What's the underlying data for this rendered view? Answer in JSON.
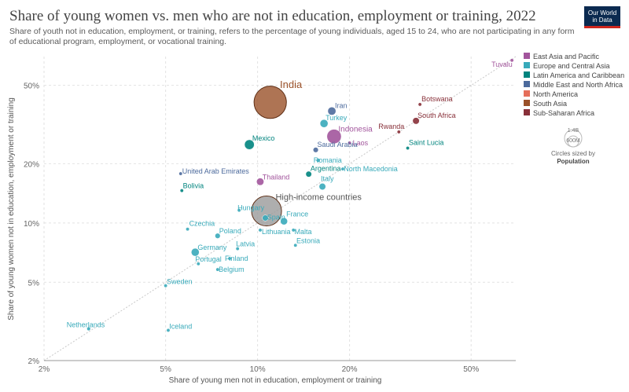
{
  "header": {
    "title": "Share of young women vs. men who are not in education, employment or training, 2022",
    "subtitle": "Share of youth not in education, employment, or training, refers to the percentage of young individuals, aged 15 to 24, who are not participating in any form of educational program, employment, or vocational training.",
    "logo_line1": "Our World",
    "logo_line2": "in Data"
  },
  "colors": {
    "East Asia and Pacific": "#a2559c",
    "Europe and Central Asia": "#38aaba",
    "Latin America and Caribbean": "#00847e",
    "Middle East and North Africa": "#4c6a9c",
    "North America": "#e56e5a",
    "South Asia": "#9a5129",
    "Sub-Saharan Africa": "#883039",
    "High-income countries": "#9a9a9a"
  },
  "size_legend": {
    "large": "1.4B",
    "small": "600M",
    "caption1": "Circles sized by",
    "caption2": "Population"
  },
  "chart_data": {
    "type": "scatter",
    "title": "Share of young women vs. men who are not in education, employment or training, 2022",
    "xlabel": "Share of young men not in education, employment or training",
    "ylabel": "Share of young women not in education, employment or training",
    "x_scale": "log",
    "y_scale": "log",
    "xlim": [
      2,
      70
    ],
    "ylim": [
      2,
      70
    ],
    "x_ticks": [
      "2%",
      "5%",
      "10%",
      "20%",
      "50%"
    ],
    "y_ticks": [
      "2%",
      "5%",
      "10%",
      "20%",
      "50%"
    ],
    "x_tick_values": [
      2,
      5,
      10,
      20,
      50
    ],
    "y_tick_values": [
      2,
      5,
      10,
      20,
      50
    ],
    "reference_line": "y = x",
    "legend": [
      "East Asia and Pacific",
      "Europe and Central Asia",
      "Latin America and Caribbean",
      "Middle East and North Africa",
      "North America",
      "South Asia",
      "Sub-Saharan Africa"
    ],
    "legend_position": "top-right",
    "points": [
      {
        "label": "Tuvalu",
        "x": 68,
        "y": 67,
        "region": "East Asia and Pacific",
        "pop": 0
      },
      {
        "label": "India",
        "x": 11,
        "y": 41,
        "region": "South Asia",
        "pop": 1400
      },
      {
        "label": "Botswana",
        "x": 34,
        "y": 40,
        "region": "Sub-Saharan Africa",
        "pop": 2
      },
      {
        "label": "Iran",
        "x": 17.5,
        "y": 37,
        "region": "Middle East and North Africa",
        "pop": 88
      },
      {
        "label": "South Africa",
        "x": 33,
        "y": 33,
        "region": "Sub-Saharan Africa",
        "pop": 60
      },
      {
        "label": "Turkey",
        "x": 16.5,
        "y": 32,
        "region": "Europe and Central Asia",
        "pop": 85
      },
      {
        "label": "Rwanda",
        "x": 29,
        "y": 29,
        "region": "Sub-Saharan Africa",
        "pop": 14
      },
      {
        "label": "Indonesia",
        "x": 17.8,
        "y": 27.5,
        "region": "East Asia and Pacific",
        "pop": 275
      },
      {
        "label": "Mexico",
        "x": 9.4,
        "y": 25,
        "region": "Latin America and Caribbean",
        "pop": 127
      },
      {
        "label": "Laos",
        "x": 20,
        "y": 25.5,
        "region": "East Asia and Pacific",
        "pop": 7
      },
      {
        "label": "Saint Lucia",
        "x": 31,
        "y": 24,
        "region": "Latin America and Caribbean",
        "pop": 0
      },
      {
        "label": "Saudi Arabia",
        "x": 15.5,
        "y": 23.5,
        "region": "Middle East and North Africa",
        "pop": 36
      },
      {
        "label": "Romania",
        "x": 15.8,
        "y": 20.8,
        "region": "Europe and Central Asia",
        "pop": 19
      },
      {
        "label": "North Macedonia",
        "x": 19,
        "y": 18.8,
        "region": "Europe and Central Asia",
        "pop": 2
      },
      {
        "label": "United Arab Emirates",
        "x": 5.6,
        "y": 17.8,
        "region": "Middle East and North Africa",
        "pop": 9
      },
      {
        "label": "Argentina",
        "x": 14.7,
        "y": 17.7,
        "region": "Latin America and Caribbean",
        "pop": 46
      },
      {
        "label": "Thailand",
        "x": 10.2,
        "y": 16.2,
        "region": "East Asia and Pacific",
        "pop": 72
      },
      {
        "label": "Italy",
        "x": 16.3,
        "y": 15.3,
        "region": "Europe and Central Asia",
        "pop": 59
      },
      {
        "label": "Bolivia",
        "x": 5.65,
        "y": 14.6,
        "region": "Latin America and Caribbean",
        "pop": 12
      },
      {
        "label": "High-income countries",
        "x": 10.7,
        "y": 11.5,
        "region": "High-income countries",
        "pop": 1200
      },
      {
        "label": "Hungary",
        "x": 8.7,
        "y": 11.6,
        "region": "Europe and Central Asia",
        "pop": 10
      },
      {
        "label": "Spain",
        "x": 10.6,
        "y": 10.6,
        "region": "Europe and Central Asia",
        "pop": 48
      },
      {
        "label": "France",
        "x": 12.2,
        "y": 10.2,
        "region": "Europe and Central Asia",
        "pop": 68
      },
      {
        "label": "Czechia",
        "x": 5.9,
        "y": 9.3,
        "region": "Europe and Central Asia",
        "pop": 11
      },
      {
        "label": "Lithuania",
        "x": 10.2,
        "y": 9.2,
        "region": "Europe and Central Asia",
        "pop": 3
      },
      {
        "label": "Malta",
        "x": 13.1,
        "y": 9.2,
        "region": "Europe and Central Asia",
        "pop": 1
      },
      {
        "label": "Poland",
        "x": 7.4,
        "y": 8.6,
        "region": "Europe and Central Asia",
        "pop": 37
      },
      {
        "label": "Estonia",
        "x": 13.3,
        "y": 7.7,
        "region": "Europe and Central Asia",
        "pop": 1
      },
      {
        "label": "Latvia",
        "x": 8.6,
        "y": 7.4,
        "region": "Europe and Central Asia",
        "pop": 2
      },
      {
        "label": "Germany",
        "x": 6.25,
        "y": 7.1,
        "region": "Europe and Central Asia",
        "pop": 84
      },
      {
        "label": "Finland",
        "x": 8.1,
        "y": 6.6,
        "region": "Europe and Central Asia",
        "pop": 6
      },
      {
        "label": "Portugal",
        "x": 6.4,
        "y": 6.2,
        "region": "Europe and Central Asia",
        "pop": 10
      },
      {
        "label": "Belgium",
        "x": 7.4,
        "y": 5.8,
        "region": "Europe and Central Asia",
        "pop": 12
      },
      {
        "label": "Sweden",
        "x": 5.0,
        "y": 4.8,
        "region": "Europe and Central Asia",
        "pop": 10
      },
      {
        "label": "Netherlands",
        "x": 2.8,
        "y": 2.9,
        "region": "Europe and Central Asia",
        "pop": 18
      },
      {
        "label": "Iceland",
        "x": 5.1,
        "y": 2.85,
        "region": "Europe and Central Asia",
        "pop": 0
      }
    ]
  }
}
